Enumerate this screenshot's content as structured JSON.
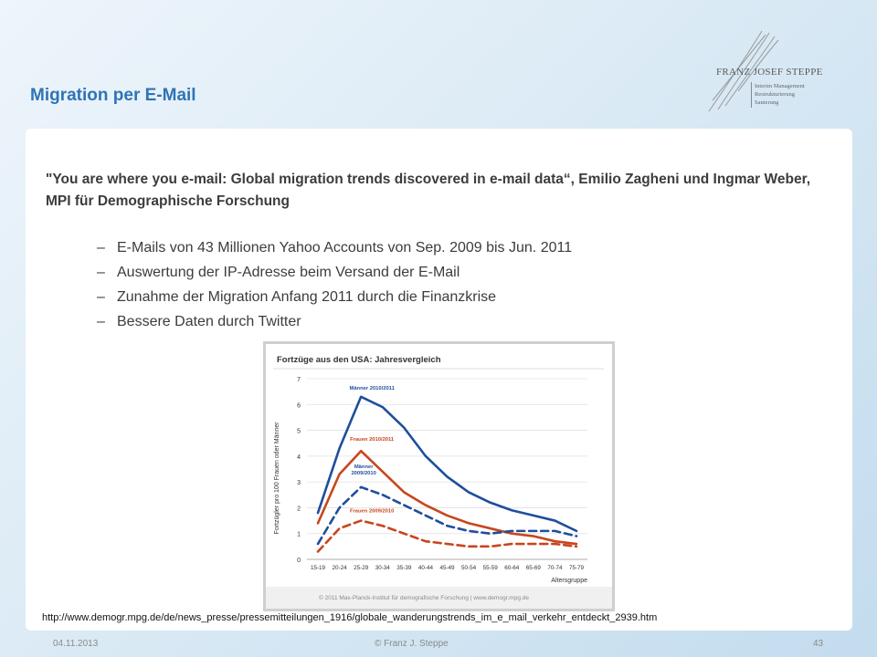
{
  "slide": {
    "title": "Migration per E-Mail",
    "logo": {
      "name": "FRANZ JOSEF STEPPE",
      "lines": [
        "Interim Management",
        "Restrukturierung",
        "Sanierung"
      ]
    },
    "citation": "\"You are where you e-mail: Global migration trends discovered in e-mail data“, Emilio Zagheni und Ingmar Weber, MPI für Demographische Forschung",
    "bullets": [
      {
        "dash": "–",
        "text": "E-Mails von 43 Millionen Yahoo Accounts von Sep. 2009 bis Jun. 2011"
      },
      {
        "dash": "–",
        "text": "Auswertung der IP-Adresse beim Versand der E-Mail"
      },
      {
        "dash": "–",
        "text": "Zunahme der Migration Anfang 2011 durch die Finanzkrise"
      },
      {
        "dash": "–",
        "text": "Bessere Daten durch Twitter"
      }
    ],
    "source_url": "http://www.demogr.mpg.de/de/news_presse/pressemitteilungen_1916/globale_wanderungstrends_im_e_mail_verkehr_entdeckt_2939.htm"
  },
  "footer": {
    "date": "04.11.2013",
    "author": "© Franz J. Steppe",
    "page": "43"
  },
  "chart_data": {
    "type": "line",
    "title": "Fortzüge aus den USA: Jahresvergleich",
    "xlabel": "Altersgruppe",
    "ylabel": "Fortzügler pro 100 Frauen oder Männer",
    "categories": [
      "15-19",
      "20-24",
      "25-29",
      "30-34",
      "35-39",
      "40-44",
      "45-49",
      "50-54",
      "55-59",
      "60-64",
      "65-69",
      "70-74",
      "75-79"
    ],
    "ylim": [
      0,
      7
    ],
    "yticks": [
      0,
      1,
      2,
      3,
      4,
      5,
      6,
      7
    ],
    "credit": "© 2011 Max-Planck-Institut für demografische Forschung | www.demogr.mpg.de",
    "series": [
      {
        "name": "Männer 2010/2011",
        "color": "#1f4e9b",
        "dash": false,
        "values": [
          1.8,
          4.3,
          6.3,
          5.9,
          5.1,
          4.0,
          3.2,
          2.6,
          2.2,
          1.9,
          1.7,
          1.5,
          1.1
        ]
      },
      {
        "name": "Frauen 2010/2011",
        "color": "#c8461d",
        "dash": false,
        "values": [
          1.4,
          3.3,
          4.2,
          3.4,
          2.6,
          2.1,
          1.7,
          1.4,
          1.2,
          1.0,
          0.9,
          0.7,
          0.6
        ]
      },
      {
        "name": "Männer 2009/2010",
        "color": "#1f4e9b",
        "dash": true,
        "values": [
          0.6,
          2.0,
          2.8,
          2.5,
          2.1,
          1.7,
          1.3,
          1.1,
          1.0,
          1.1,
          1.1,
          1.1,
          0.9
        ]
      },
      {
        "name": "Frauen 2009/2010",
        "color": "#c8461d",
        "dash": true,
        "values": [
          0.3,
          1.2,
          1.5,
          1.3,
          1.0,
          0.7,
          0.6,
          0.5,
          0.5,
          0.6,
          0.6,
          0.6,
          0.5
        ]
      }
    ]
  }
}
